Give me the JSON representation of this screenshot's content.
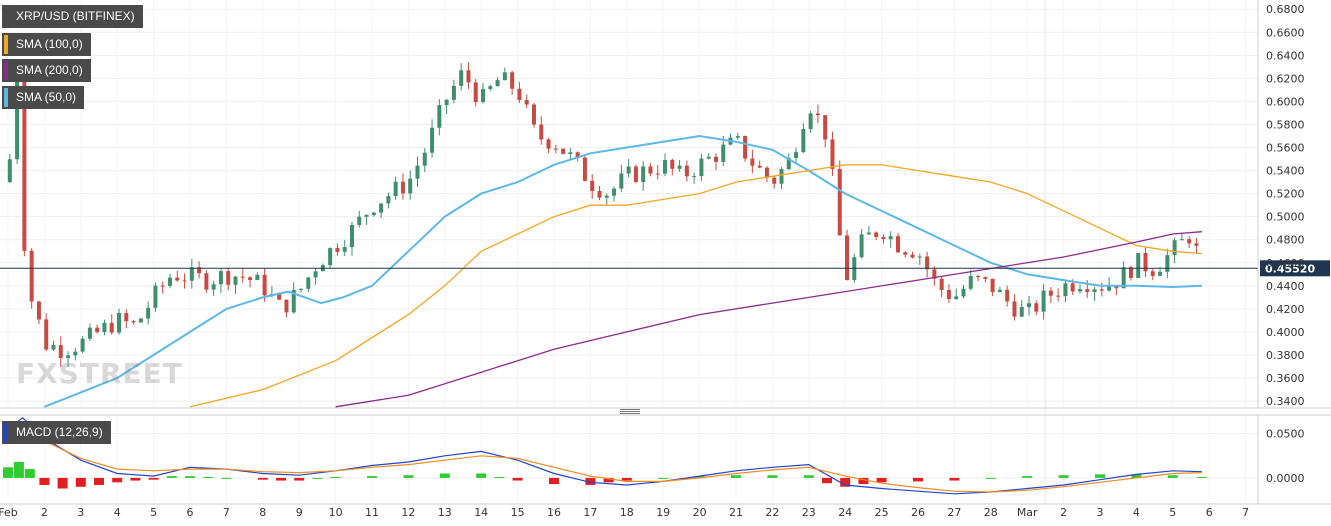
{
  "legends": {
    "main": "XRP/USD (BITFINEX)",
    "sma100": "SMA (100,0)",
    "sma200": "SMA (200,0)",
    "sma50": "SMA (50,0)",
    "macd": "MACD (12,26,9)"
  },
  "colors": {
    "up": "#3f8f6f",
    "down": "#c84a42",
    "sma50": "#5cb8e6",
    "sma100": "#f5a623",
    "sma200": "#8e2b8e",
    "macd_line": "#2244cc",
    "signal_line": "#f08c20",
    "hist_pos": "#2ecc2e",
    "hist_neg": "#e02020",
    "price_line": "#1f3550",
    "legend_bg": "#4a4a4a"
  },
  "watermark": "FXSTREET",
  "current_price_label": "0.45520",
  "chart_data": [
    {
      "type": "candlestick",
      "title": "XRP/USD (BITFINEX)",
      "x_tick_labels": [
        "Feb",
        "2",
        "3",
        "4",
        "5",
        "6",
        "7",
        "8",
        "9",
        "10",
        "11",
        "12",
        "13",
        "14",
        "15",
        "16",
        "17",
        "18",
        "19",
        "20",
        "21",
        "22",
        "23",
        "24",
        "25",
        "26",
        "27",
        "28",
        "Mar",
        "2",
        "3",
        "4",
        "5",
        "6",
        "7"
      ],
      "y_tick_labels": [
        "0.6800",
        "0.6600",
        "0.6400",
        "0.6200",
        "0.6000",
        "0.5800",
        "0.5600",
        "0.5400",
        "0.5200",
        "0.5000",
        "0.4800",
        "0.4600",
        "0.4400",
        "0.4200",
        "0.4000",
        "0.3800",
        "0.3600",
        "0.3400"
      ],
      "ylim": [
        0.334,
        0.688
      ],
      "xlim": [
        0,
        34.8
      ],
      "last_price": 0.4552,
      "close_path": [
        [
          0,
          0.53
        ],
        [
          0.25,
          0.63
        ],
        [
          0.5,
          0.44
        ],
        [
          0.75,
          0.42
        ],
        [
          1,
          0.39
        ],
        [
          1.5,
          0.385
        ],
        [
          2,
          0.39
        ],
        [
          2.5,
          0.4
        ],
        [
          3,
          0.41
        ],
        [
          3.5,
          0.405
        ],
        [
          4,
          0.43
        ],
        [
          4.5,
          0.45
        ],
        [
          5,
          0.448
        ],
        [
          5.5,
          0.445
        ],
        [
          6,
          0.45
        ],
        [
          6.5,
          0.448
        ],
        [
          7,
          0.44
        ],
        [
          7.5,
          0.42
        ],
        [
          8,
          0.435
        ],
        [
          8.5,
          0.46
        ],
        [
          9,
          0.475
        ],
        [
          9.5,
          0.49
        ],
        [
          10,
          0.51
        ],
        [
          10.5,
          0.52
        ],
        [
          11,
          0.53
        ],
        [
          11.5,
          0.56
        ],
        [
          12,
          0.6
        ],
        [
          12.5,
          0.625
        ],
        [
          13,
          0.6
        ],
        [
          13.5,
          0.62
        ],
        [
          14,
          0.61
        ],
        [
          14.5,
          0.57
        ],
        [
          15,
          0.565
        ],
        [
          15.5,
          0.55
        ],
        [
          16,
          0.53
        ],
        [
          16.5,
          0.52
        ],
        [
          17,
          0.535
        ],
        [
          17.5,
          0.54
        ],
        [
          18,
          0.545
        ],
        [
          18.5,
          0.535
        ],
        [
          19,
          0.545
        ],
        [
          19.5,
          0.555
        ],
        [
          20,
          0.565
        ],
        [
          20.5,
          0.545
        ],
        [
          21,
          0.53
        ],
        [
          21.5,
          0.55
        ],
        [
          22,
          0.6
        ],
        [
          22.5,
          0.57
        ],
        [
          23,
          0.445
        ],
        [
          23.5,
          0.48
        ],
        [
          24,
          0.49
        ],
        [
          24.5,
          0.475
        ],
        [
          25,
          0.47
        ],
        [
          25.5,
          0.44
        ],
        [
          26,
          0.43
        ],
        [
          26.5,
          0.445
        ],
        [
          27,
          0.44
        ],
        [
          27.5,
          0.425
        ],
        [
          28,
          0.415
        ],
        [
          28.5,
          0.43
        ],
        [
          29,
          0.44
        ],
        [
          29.5,
          0.445
        ],
        [
          30,
          0.44
        ],
        [
          30.5,
          0.445
        ],
        [
          31,
          0.46
        ],
        [
          31.5,
          0.455
        ],
        [
          32,
          0.47
        ],
        [
          32.5,
          0.485
        ],
        [
          32.8,
          0.4552
        ]
      ],
      "series": [
        {
          "name": "SMA (50,0)",
          "points": [
            [
              1,
              0.335
            ],
            [
              3,
              0.36
            ],
            [
              5,
              0.4
            ],
            [
              6,
              0.42
            ],
            [
              7,
              0.43
            ],
            [
              7.7,
              0.435
            ],
            [
              8.6,
              0.425
            ],
            [
              9.2,
              0.43
            ],
            [
              10,
              0.44
            ],
            [
              11,
              0.47
            ],
            [
              12,
              0.5
            ],
            [
              13,
              0.52
            ],
            [
              14,
              0.53
            ],
            [
              15,
              0.545
            ],
            [
              16,
              0.555
            ],
            [
              17,
              0.56
            ],
            [
              18,
              0.565
            ],
            [
              19,
              0.57
            ],
            [
              20,
              0.565
            ],
            [
              21,
              0.558
            ],
            [
              22,
              0.54
            ],
            [
              23,
              0.52
            ],
            [
              24,
              0.505
            ],
            [
              25,
              0.49
            ],
            [
              26,
              0.475
            ],
            [
              27,
              0.46
            ],
            [
              28,
              0.45
            ],
            [
              29,
              0.445
            ],
            [
              30,
              0.44
            ],
            [
              31,
              0.44
            ],
            [
              32,
              0.439
            ],
            [
              32.8,
              0.44
            ]
          ]
        },
        {
          "name": "SMA (100,0)",
          "points": [
            [
              5,
              0.335
            ],
            [
              7,
              0.35
            ],
            [
              9,
              0.375
            ],
            [
              11,
              0.415
            ],
            [
              12,
              0.44
            ],
            [
              13,
              0.47
            ],
            [
              14,
              0.485
            ],
            [
              15,
              0.5
            ],
            [
              16,
              0.51
            ],
            [
              17,
              0.51
            ],
            [
              18,
              0.515
            ],
            [
              19,
              0.52
            ],
            [
              20,
              0.53
            ],
            [
              21,
              0.535
            ],
            [
              22,
              0.54
            ],
            [
              23,
              0.545
            ],
            [
              24,
              0.545
            ],
            [
              25,
              0.54
            ],
            [
              26,
              0.535
            ],
            [
              27,
              0.53
            ],
            [
              28,
              0.52
            ],
            [
              29,
              0.505
            ],
            [
              30,
              0.49
            ],
            [
              31,
              0.475
            ],
            [
              32,
              0.47
            ],
            [
              32.8,
              0.468
            ]
          ]
        },
        {
          "name": "SMA (200,0)",
          "points": [
            [
              9,
              0.335
            ],
            [
              11,
              0.345
            ],
            [
              13,
              0.365
            ],
            [
              15,
              0.385
            ],
            [
              17,
              0.4
            ],
            [
              19,
              0.415
            ],
            [
              21,
              0.425
            ],
            [
              23,
              0.435
            ],
            [
              25,
              0.445
            ],
            [
              27,
              0.455
            ],
            [
              29,
              0.465
            ],
            [
              31,
              0.478
            ],
            [
              32,
              0.485
            ],
            [
              32.8,
              0.487
            ]
          ]
        }
      ]
    },
    {
      "type": "line",
      "title": "MACD (12,26,9)",
      "y_tick_labels": [
        "0.0500",
        "0.0000"
      ],
      "ylim": [
        -0.025,
        0.07
      ],
      "xlim": [
        0,
        34.8
      ],
      "series": [
        {
          "name": "MACD",
          "points": [
            [
              0,
              0.055
            ],
            [
              0.4,
              0.068
            ],
            [
              1,
              0.045
            ],
            [
              2,
              0.02
            ],
            [
              3,
              0.005
            ],
            [
              4,
              0.002
            ],
            [
              5,
              0.012
            ],
            [
              6,
              0.01
            ],
            [
              7,
              0.005
            ],
            [
              8,
              0.003
            ],
            [
              9,
              0.008
            ],
            [
              10,
              0.014
            ],
            [
              11,
              0.018
            ],
            [
              12,
              0.025
            ],
            [
              13,
              0.03
            ],
            [
              14,
              0.02
            ],
            [
              15,
              0.005
            ],
            [
              16,
              -0.005
            ],
            [
              17,
              -0.008
            ],
            [
              18,
              -0.004
            ],
            [
              19,
              0.002
            ],
            [
              20,
              0.008
            ],
            [
              21,
              0.012
            ],
            [
              22,
              0.015
            ],
            [
              23,
              -0.008
            ],
            [
              24,
              -0.012
            ],
            [
              25,
              -0.015
            ],
            [
              26,
              -0.018
            ],
            [
              27,
              -0.016
            ],
            [
              28,
              -0.012
            ],
            [
              29,
              -0.008
            ],
            [
              30,
              -0.002
            ],
            [
              31,
              0.004
            ],
            [
              32,
              0.008
            ],
            [
              32.8,
              0.007
            ]
          ]
        },
        {
          "name": "Signal",
          "points": [
            [
              0,
              0.06
            ],
            [
              0.4,
              0.055
            ],
            [
              1,
              0.042
            ],
            [
              2,
              0.022
            ],
            [
              3,
              0.01
            ],
            [
              4,
              0.008
            ],
            [
              5,
              0.01
            ],
            [
              6,
              0.01
            ],
            [
              7,
              0.007
            ],
            [
              8,
              0.006
            ],
            [
              9,
              0.008
            ],
            [
              10,
              0.012
            ],
            [
              11,
              0.015
            ],
            [
              12,
              0.02
            ],
            [
              13,
              0.025
            ],
            [
              14,
              0.022
            ],
            [
              15,
              0.012
            ],
            [
              16,
              0.002
            ],
            [
              17,
              -0.004
            ],
            [
              18,
              -0.004
            ],
            [
              19,
              0.0
            ],
            [
              20,
              0.005
            ],
            [
              21,
              0.009
            ],
            [
              22,
              0.012
            ],
            [
              23,
              0.002
            ],
            [
              24,
              -0.006
            ],
            [
              25,
              -0.011
            ],
            [
              26,
              -0.015
            ],
            [
              27,
              -0.016
            ],
            [
              28,
              -0.014
            ],
            [
              29,
              -0.01
            ],
            [
              30,
              -0.005
            ],
            [
              31,
              0.0
            ],
            [
              32,
              0.005
            ],
            [
              32.8,
              0.006
            ]
          ]
        },
        {
          "name": "Histogram",
          "type": "bar",
          "points": [
            [
              0,
              0.012
            ],
            [
              0.3,
              0.018
            ],
            [
              0.6,
              0.01
            ],
            [
              1,
              -0.008
            ],
            [
              1.5,
              -0.012
            ],
            [
              2,
              -0.01
            ],
            [
              2.5,
              -0.008
            ],
            [
              3,
              -0.005
            ],
            [
              3.5,
              -0.003
            ],
            [
              4,
              -0.002
            ],
            [
              4.5,
              0.002
            ],
            [
              5,
              0.002
            ],
            [
              5.5,
              0.001
            ],
            [
              6,
              0.0
            ],
            [
              7,
              -0.002
            ],
            [
              7.5,
              -0.003
            ],
            [
              8,
              -0.003
            ],
            [
              8.5,
              0.0
            ],
            [
              9,
              0.001
            ],
            [
              10,
              0.002
            ],
            [
              11,
              0.003
            ],
            [
              12,
              0.005
            ],
            [
              13,
              0.005
            ],
            [
              13.5,
              0.001
            ],
            [
              14,
              -0.003
            ],
            [
              15,
              -0.007
            ],
            [
              16,
              -0.008
            ],
            [
              16.5,
              -0.005
            ],
            [
              17,
              -0.003
            ],
            [
              18,
              0.0
            ],
            [
              19,
              0.002
            ],
            [
              20,
              0.003
            ],
            [
              21,
              0.003
            ],
            [
              22,
              0.003
            ],
            [
              22.5,
              -0.006
            ],
            [
              23,
              -0.01
            ],
            [
              23.5,
              -0.007
            ],
            [
              24,
              -0.005
            ],
            [
              25,
              -0.004
            ],
            [
              26,
              -0.003
            ],
            [
              27,
              0.0
            ],
            [
              28,
              0.002
            ],
            [
              29,
              0.003
            ],
            [
              30,
              0.004
            ],
            [
              31,
              0.004
            ],
            [
              32,
              0.003
            ],
            [
              32.8,
              0.001
            ]
          ]
        }
      ]
    }
  ]
}
